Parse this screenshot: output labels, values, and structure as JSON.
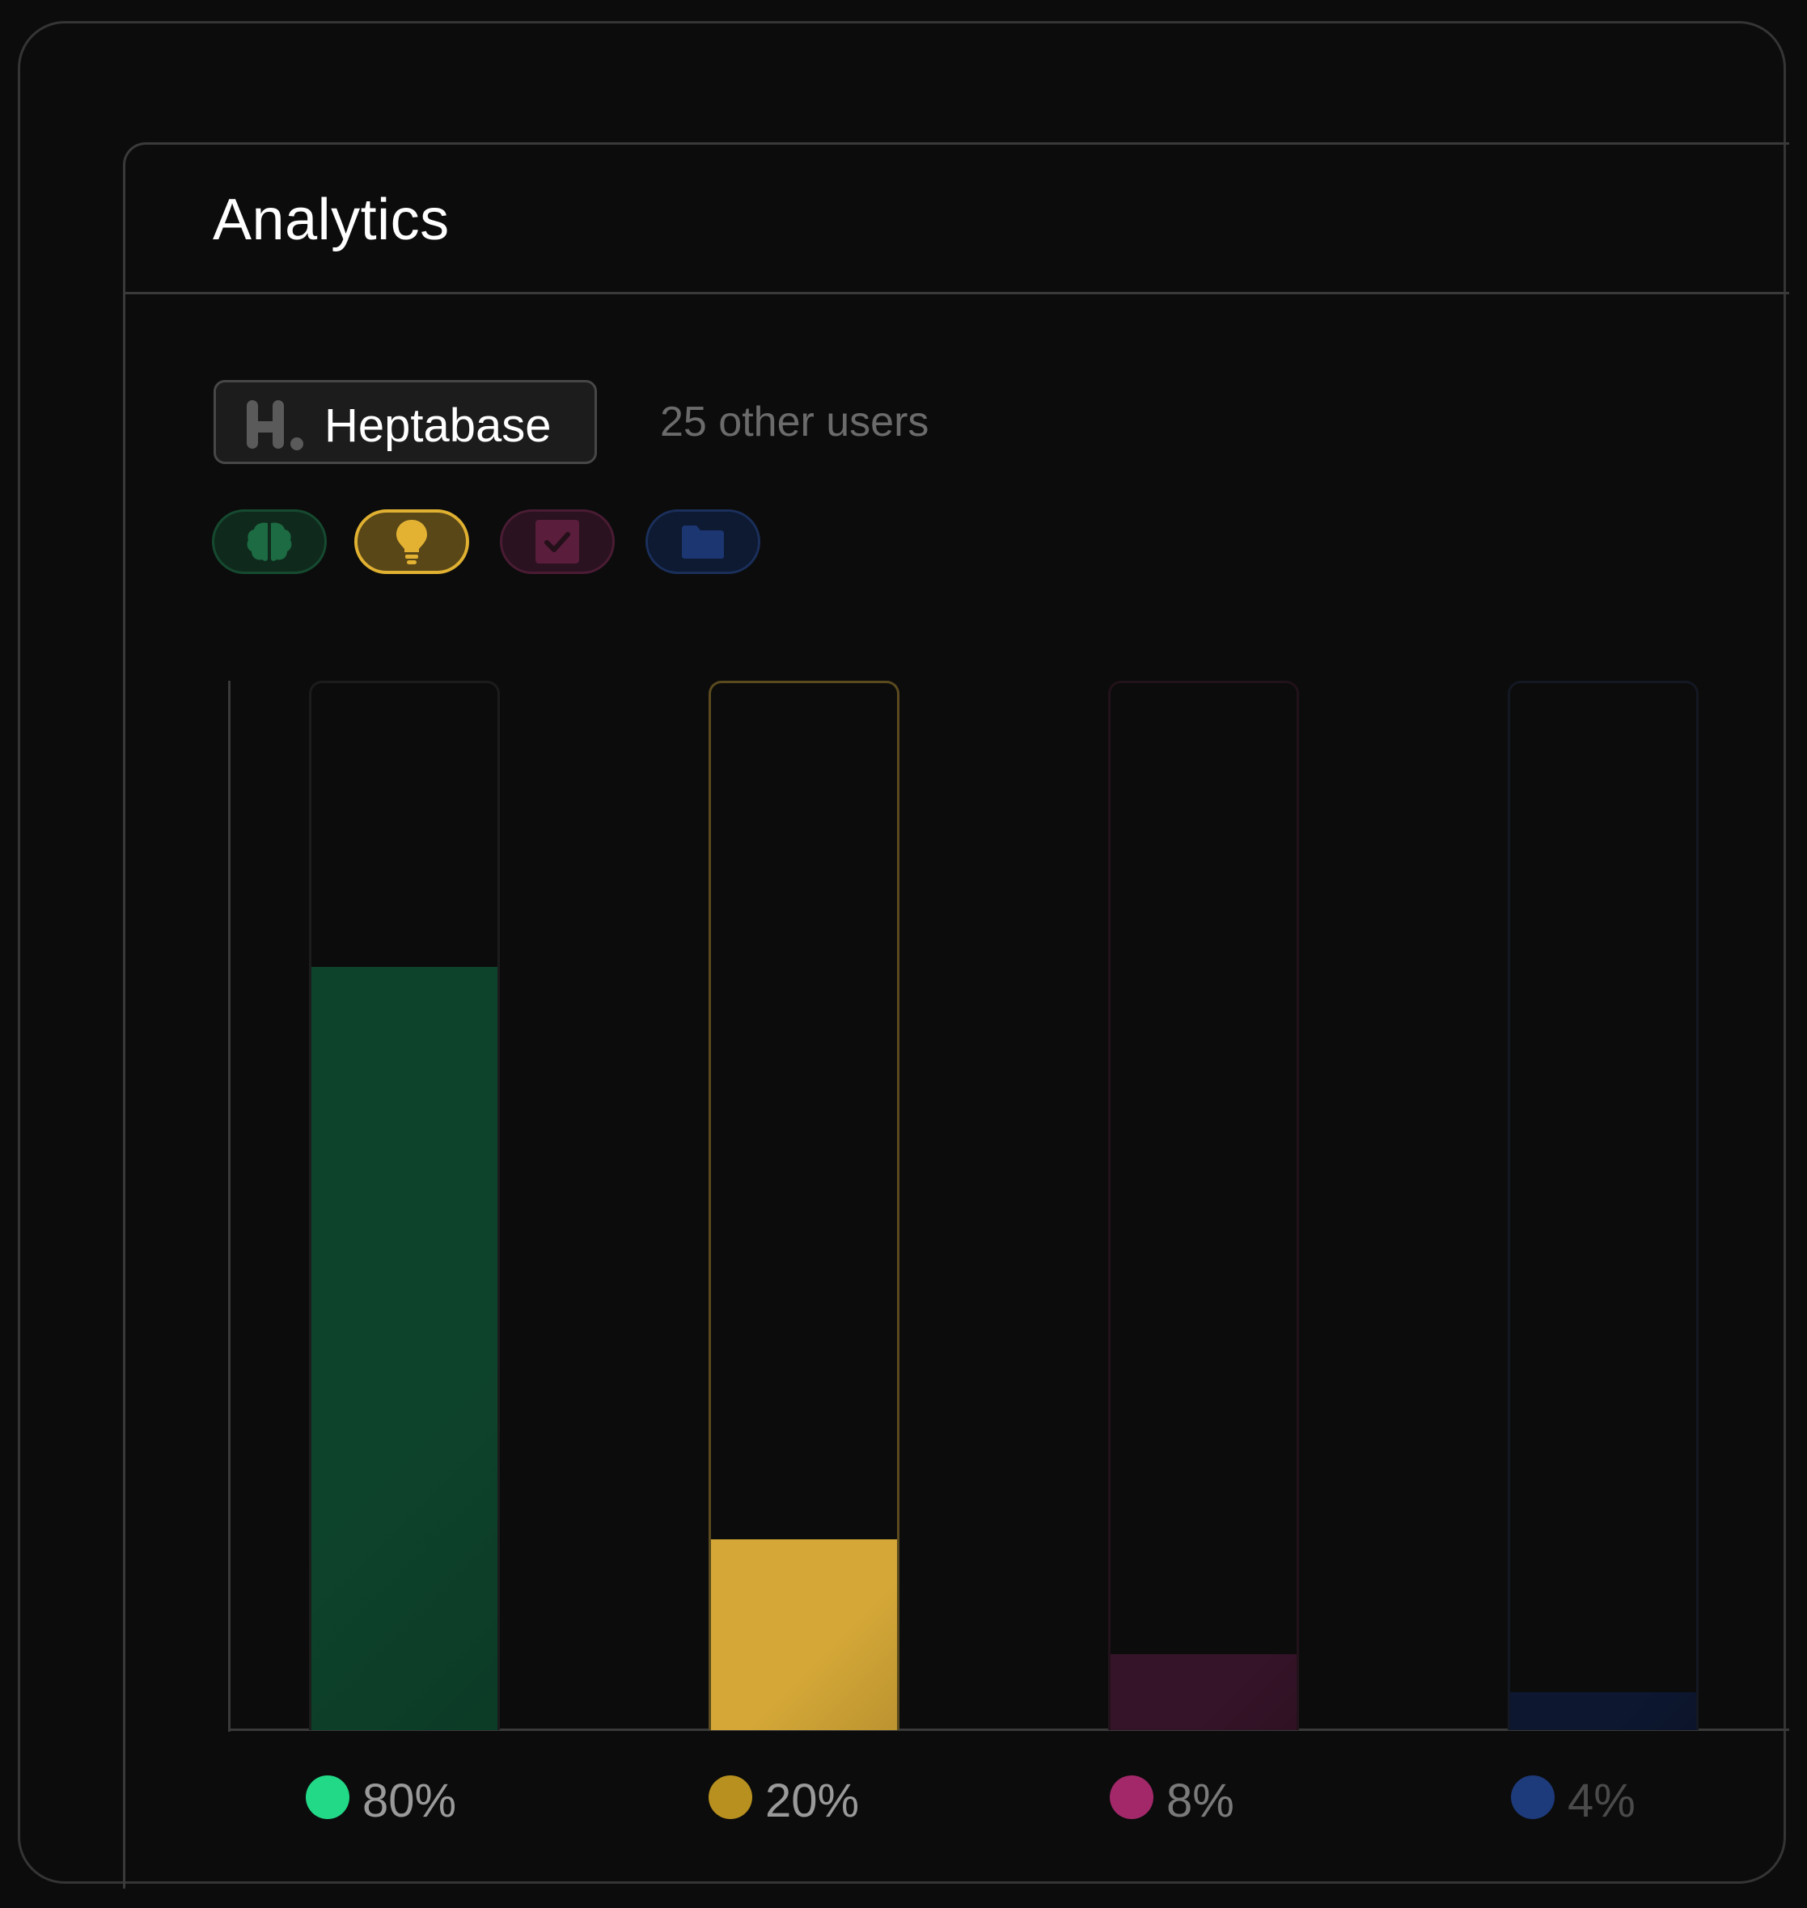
{
  "panel": {
    "title": "Analytics"
  },
  "app_selector": {
    "name": "Heptabase",
    "logo_icon": "heptabase-logo-icon",
    "other_users": "25 other users"
  },
  "filters": [
    {
      "icon": "brain-icon",
      "color": "#1b6b43",
      "selected": false
    },
    {
      "icon": "lightbulb-icon",
      "color": "#e0b131",
      "selected": true
    },
    {
      "icon": "checkbox-icon",
      "color": "#8f2a5c",
      "selected": false
    },
    {
      "icon": "folder-icon",
      "color": "#1d3a7a",
      "selected": false
    }
  ],
  "chart_data": {
    "type": "bar",
    "categories": [
      "brain",
      "lightbulb",
      "checkbox",
      "folder"
    ],
    "values": [
      80,
      20,
      8,
      4
    ],
    "value_labels": [
      "80%",
      "20%",
      "8%",
      "4%"
    ],
    "ylim": [
      0,
      110
    ],
    "colors": [
      "#22d987",
      "#b8901f",
      "#a3286a",
      "#1d3a7a"
    ],
    "fill_colors": [
      "#0e432b",
      "#d4a737",
      "#351328",
      "#0d1730"
    ],
    "track_borders": [
      "#1c1c1c",
      "#5a4a1e",
      "#22121a",
      "#141822"
    ],
    "label_colors": [
      "#9a9a9a",
      "#9a9a9a",
      "#7a7a7a",
      "#4a4a4a"
    ],
    "grid": false
  }
}
